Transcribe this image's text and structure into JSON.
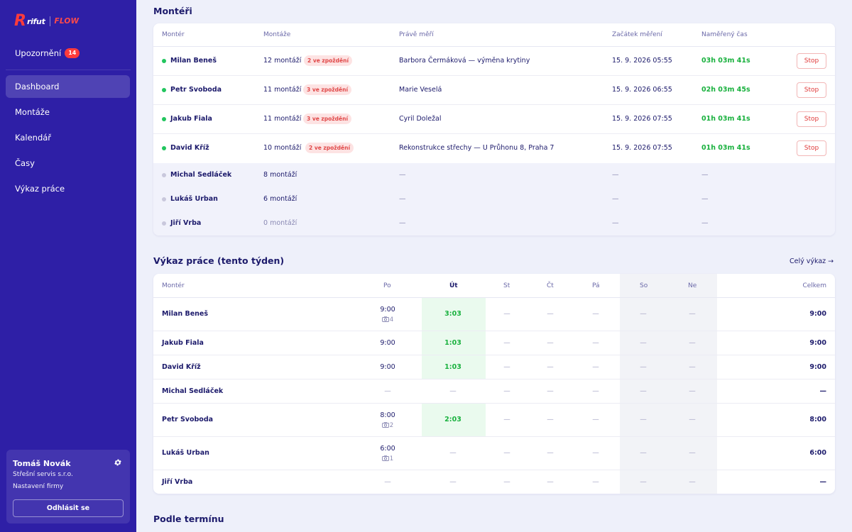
{
  "brand": {
    "logo_r": "R",
    "logo_word": "rifut",
    "logo_product": "FLOW",
    "accent": "#ff3b3b",
    "sidebar_bg": "#2e1fa6"
  },
  "notifications": {
    "label": "Upozornění",
    "count": "14"
  },
  "nav": [
    {
      "label": "Dashboard",
      "active": true
    },
    {
      "label": "Montáže"
    },
    {
      "label": "Kalendář"
    },
    {
      "label": "Časy"
    },
    {
      "label": "Výkaz práce"
    }
  ],
  "user": {
    "name": "Tomáš Novák",
    "company": "Střešní servis s.r.o.",
    "settings": "Nastavení firmy",
    "logout": "Odhlásit se",
    "gear_icon": "gear-icon"
  },
  "montéři": {
    "title": "Montéři",
    "columns": [
      "Montér",
      "Montáže",
      "Právě měří",
      "Začátek měření",
      "Naměřený čas"
    ],
    "stop_label": "Stop",
    "dash": "—",
    "rows": [
      {
        "name": "Milan Beneš",
        "count": "12 montáží",
        "delay": "2 ve zpoždění",
        "now": "Barbora Čermáková — výměna krytiny",
        "start": "15. 9. 2026 05:55",
        "time": "03h 03m 41s"
      },
      {
        "name": "Petr Svoboda",
        "count": "11 montáží",
        "delay": "3 ve zpoždění",
        "now": "Marie Veselá",
        "start": "15. 9. 2026 06:55",
        "time": "02h 03m 45s"
      },
      {
        "name": "Jakub Fiala",
        "count": "11 montáží",
        "delay": "3 ve zpoždění",
        "now": "Cyril Doležal",
        "start": "15. 9. 2026 07:55",
        "time": "01h 03m 41s"
      },
      {
        "name": "David Kříž",
        "count": "10 montáží",
        "delay": "2 ve zpoždění",
        "now": "Rekonstrukce střechy — U Průhonu 8, Praha 7",
        "start": "15. 9. 2026 07:55",
        "time": "01h 03m 41s"
      }
    ],
    "inactive_rows": [
      {
        "name": "Michal Sedláček",
        "count": "8 montáží"
      },
      {
        "name": "Lukáš Urban",
        "count": "6 montáží"
      },
      {
        "name": "Jiří Vrba",
        "count": "0 montáží"
      }
    ]
  },
  "vykaz": {
    "title": "Výkaz práce (tento týden)",
    "link": "Celý výkaz →",
    "columns": {
      "name": "Montér",
      "days": [
        "Po",
        "Út",
        "St",
        "Čt",
        "Pá",
        "So",
        "Ne"
      ],
      "total": "Celkem"
    },
    "dash": "—",
    "rows": [
      {
        "name": "Milan Beneš",
        "po": "9:00",
        "po_photos": "4",
        "ut": "3:03",
        "total": "9:00"
      },
      {
        "name": "Jakub Fiala",
        "po": "9:00",
        "ut": "1:03",
        "total": "9:00"
      },
      {
        "name": "David Kříž",
        "po": "9:00",
        "ut": "1:03",
        "total": "9:00"
      },
      {
        "name": "Michal Sedláček",
        "po": "—",
        "ut": "—",
        "total": "—"
      },
      {
        "name": "Petr Svoboda",
        "po": "8:00",
        "po_photos": "2",
        "ut": "2:03",
        "total": "8:00"
      },
      {
        "name": "Lukáš Urban",
        "po": "6:00",
        "po_photos": "1",
        "ut": "—",
        "total": "6:00"
      },
      {
        "name": "Jiří Vrba",
        "po": "—",
        "ut": "—",
        "total": "—"
      }
    ]
  },
  "podle_terminu": {
    "title": "Podle termínu"
  }
}
